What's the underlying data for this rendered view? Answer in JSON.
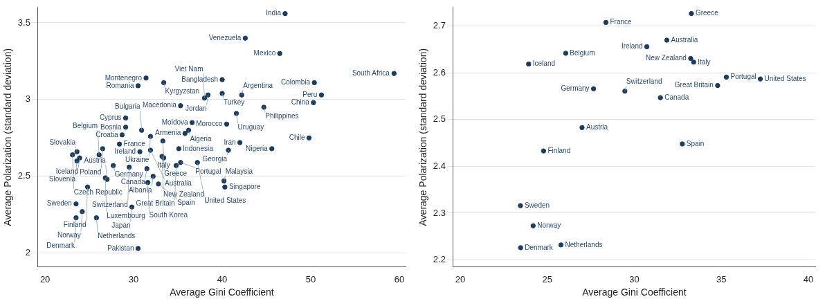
{
  "chart_data": [
    {
      "type": "scatter",
      "xlabel": "Average Gini Coefficient",
      "ylabel": "Average Polarization (standard deviation)",
      "color": "#1c3d5e",
      "marker": "circle",
      "grid": "y",
      "xlim": [
        19.2,
        60.7
      ],
      "ylim": [
        1.91,
        3.6
      ],
      "xticks": [
        20,
        30,
        40,
        50,
        60
      ],
      "yticks": [
        2,
        2.5,
        3,
        3.5
      ],
      "x": [
        47.1,
        42.6,
        46.5,
        59.4,
        40.0,
        50.4,
        31.4,
        33.4,
        30.5,
        40.0,
        42.2,
        38.4,
        38.0,
        51.2,
        50.3,
        35.3,
        44.7,
        41.6,
        29.1,
        36.6,
        40.5,
        29.1,
        30.9,
        36.2,
        35.8,
        28.7,
        31.9,
        49.8,
        33.3,
        42.0,
        28.4,
        26.5,
        35.1,
        45.6,
        40.7,
        31.9,
        23.6,
        30.7,
        26.1,
        23.1,
        33.2,
        33.4,
        23.9,
        23.6,
        35.3,
        37.2,
        34.8,
        27.7,
        29.5,
        31.5,
        32.2,
        26.8,
        27.0,
        40.2,
        31.6,
        32.8,
        24.8,
        40.3,
        23.5,
        29.8,
        24.2,
        23.5,
        25.8,
        30.5
      ],
      "values": [
        3.56,
        3.4,
        3.3,
        3.17,
        3.13,
        3.11,
        3.14,
        3.11,
        3.09,
        3.04,
        3.03,
        3.03,
        3.01,
        3.03,
        2.98,
        2.96,
        2.95,
        2.91,
        2.88,
        2.85,
        2.84,
        2.82,
        2.8,
        2.8,
        2.78,
        2.77,
        2.76,
        2.75,
        2.73,
        2.72,
        2.71,
        2.68,
        2.68,
        2.68,
        2.67,
        2.67,
        2.66,
        2.66,
        2.64,
        2.64,
        2.63,
        2.62,
        2.62,
        2.6,
        2.59,
        2.59,
        2.57,
        2.57,
        2.56,
        2.55,
        2.5,
        2.49,
        2.48,
        2.47,
        2.46,
        2.45,
        2.43,
        2.43,
        2.32,
        2.3,
        2.27,
        2.23,
        2.23,
        2.03
      ],
      "annotations": [
        {
          "text": "India",
          "x": 47.1,
          "y": 3.56
        },
        {
          "text": "Venezuela",
          "x": 42.6,
          "y": 3.4
        },
        {
          "text": "Mexico",
          "x": 46.5,
          "y": 3.3
        },
        {
          "text": "South Africa",
          "x": 59.4,
          "y": 3.17
        },
        {
          "text": "Bangladesh",
          "x": 40.0,
          "y": 3.13
        },
        {
          "text": "Colombia",
          "x": 50.4,
          "y": 3.11
        },
        {
          "text": "Montenegro",
          "x": 31.4,
          "y": 3.14
        },
        {
          "text": "Kyrgyzstan",
          "x": 33.4,
          "y": 3.11
        },
        {
          "text": "Romania",
          "x": 30.5,
          "y": 3.09
        },
        {
          "text": "Turkey",
          "x": 40.0,
          "y": 3.04
        },
        {
          "text": "Argentina",
          "x": 42.2,
          "y": 3.03
        },
        {
          "text": "Jordan",
          "x": 38.4,
          "y": 3.03
        },
        {
          "text": "Viet Nam",
          "x": 38.0,
          "y": 3.01
        },
        {
          "text": "Peru",
          "x": 51.2,
          "y": 3.03
        },
        {
          "text": "China",
          "x": 50.3,
          "y": 2.98
        },
        {
          "text": "Macedonia",
          "x": 35.3,
          "y": 2.96
        },
        {
          "text": "Philippines",
          "x": 44.7,
          "y": 2.95
        },
        {
          "text": "Uruguay",
          "x": 41.6,
          "y": 2.91
        },
        {
          "text": "Cyprus",
          "x": 29.1,
          "y": 2.88
        },
        {
          "text": "Moldova",
          "x": 36.6,
          "y": 2.85
        },
        {
          "text": "Morocco",
          "x": 40.5,
          "y": 2.84
        },
        {
          "text": "Bosnia",
          "x": 29.1,
          "y": 2.82
        },
        {
          "text": "Bulgaria",
          "x": 30.9,
          "y": 2.8
        },
        {
          "text": "Algeria",
          "x": 36.2,
          "y": 2.8
        },
        {
          "text": "Armenia",
          "x": 35.8,
          "y": 2.78
        },
        {
          "text": "Croatia",
          "x": 28.7,
          "y": 2.77
        },
        {
          "text": "Ukraine",
          "x": 31.9,
          "y": 2.76
        },
        {
          "text": "Chile",
          "x": 49.8,
          "y": 2.75
        },
        {
          "text": "Greece",
          "x": 33.3,
          "y": 2.73
        },
        {
          "text": "Iran",
          "x": 42.0,
          "y": 2.72
        },
        {
          "text": "France",
          "x": 28.4,
          "y": 2.71
        },
        {
          "text": "Poland",
          "x": 26.5,
          "y": 2.68
        },
        {
          "text": "Indonesia",
          "x": 35.1,
          "y": 2.68
        },
        {
          "text": "Nigeria",
          "x": 45.6,
          "y": 2.68
        },
        {
          "text": "Georgia",
          "x": 40.7,
          "y": 2.67
        },
        {
          "text": "Australia",
          "x": 31.9,
          "y": 2.67
        },
        {
          "text": "Slovakia",
          "x": 23.6,
          "y": 2.66
        },
        {
          "text": "Ireland",
          "x": 30.7,
          "y": 2.66
        },
        {
          "text": "Belgium",
          "x": 26.1,
          "y": 2.64
        },
        {
          "text": "Czech Republic",
          "x": 23.1,
          "y": 2.64
        },
        {
          "text": "New Zealand",
          "x": 33.2,
          "y": 2.63
        },
        {
          "text": "Italy",
          "x": 33.4,
          "y": 2.62
        },
        {
          "text": "Iceland",
          "x": 23.9,
          "y": 2.62
        },
        {
          "text": "Slovenia",
          "x": 23.6,
          "y": 2.6
        },
        {
          "text": "Portugal",
          "x": 35.3,
          "y": 2.59
        },
        {
          "text": "United States",
          "x": 37.2,
          "y": 2.59
        },
        {
          "text": "Great Britain",
          "x": 34.8,
          "y": 2.57
        },
        {
          "text": "Germany",
          "x": 27.7,
          "y": 2.57
        },
        {
          "text": "Switzerland",
          "x": 29.5,
          "y": 2.56
        },
        {
          "text": "Canada",
          "x": 31.5,
          "y": 2.55
        },
        {
          "text": "Albania",
          "x": 32.2,
          "y": 2.5
        },
        {
          "text": "Luxembourg",
          "x": 26.8,
          "y": 2.49
        },
        {
          "text": "Austria",
          "x": 27.0,
          "y": 2.48
        },
        {
          "text": "Malaysia",
          "x": 40.2,
          "y": 2.47
        },
        {
          "text": "South Korea",
          "x": 31.6,
          "y": 2.46
        },
        {
          "text": "Spain",
          "x": 32.8,
          "y": 2.45
        },
        {
          "text": "Finland",
          "x": 24.8,
          "y": 2.43
        },
        {
          "text": "Singapore",
          "x": 40.3,
          "y": 2.43
        },
        {
          "text": "Sweden",
          "x": 23.5,
          "y": 2.32
        },
        {
          "text": "Japan",
          "x": 29.8,
          "y": 2.3
        },
        {
          "text": "Norway",
          "x": 24.2,
          "y": 2.27
        },
        {
          "text": "Denmark",
          "x": 23.5,
          "y": 2.23
        },
        {
          "text": "Netherlands",
          "x": 25.8,
          "y": 2.23
        },
        {
          "text": "Pakistan",
          "x": 30.5,
          "y": 2.03
        }
      ]
    },
    {
      "type": "scatter",
      "xlabel": "Average Gini Coefficient",
      "ylabel": "Average Polarization (standard deviation)",
      "color": "#1c3d5e",
      "marker": "circle",
      "grid": "y",
      "xlim": [
        19.6,
        40.4
      ],
      "ylim": [
        2.185,
        2.74
      ],
      "xticks": [
        20,
        25,
        30,
        35,
        40
      ],
      "yticks": [
        2.2,
        2.3,
        2.4,
        2.5,
        2.6,
        2.7
      ],
      "x": [
        33.28,
        28.37,
        31.87,
        30.72,
        26.06,
        23.93,
        33.24,
        33.41,
        35.29,
        37.24,
        34.79,
        27.66,
        29.46,
        31.5,
        27.0,
        32.76,
        24.79,
        23.46,
        24.19,
        23.47,
        25.79
      ],
      "values": [
        2.727,
        2.708,
        2.67,
        2.656,
        2.642,
        2.619,
        2.631,
        2.623,
        2.591,
        2.587,
        2.573,
        2.566,
        2.561,
        2.547,
        2.483,
        2.448,
        2.433,
        2.316,
        2.273,
        2.226,
        2.232
      ],
      "annotations": [
        {
          "text": "Greece",
          "x": 33.28,
          "y": 2.727
        },
        {
          "text": "France",
          "x": 28.37,
          "y": 2.708
        },
        {
          "text": "Australia",
          "x": 31.87,
          "y": 2.67
        },
        {
          "text": "Ireland",
          "x": 30.72,
          "y": 2.656
        },
        {
          "text": "Belgium",
          "x": 26.06,
          "y": 2.642
        },
        {
          "text": "Iceland",
          "x": 23.93,
          "y": 2.619
        },
        {
          "text": "New Zealand",
          "x": 33.24,
          "y": 2.631
        },
        {
          "text": "Italy",
          "x": 33.41,
          "y": 2.623
        },
        {
          "text": "Portugal",
          "x": 35.29,
          "y": 2.591
        },
        {
          "text": "United States",
          "x": 37.24,
          "y": 2.587
        },
        {
          "text": "Great Britain",
          "x": 34.79,
          "y": 2.573
        },
        {
          "text": "Germany",
          "x": 27.66,
          "y": 2.566
        },
        {
          "text": "Switzerland",
          "x": 29.46,
          "y": 2.561
        },
        {
          "text": "Canada",
          "x": 31.5,
          "y": 2.547
        },
        {
          "text": "Austria",
          "x": 27.0,
          "y": 2.483
        },
        {
          "text": "Spain",
          "x": 32.76,
          "y": 2.448
        },
        {
          "text": "Finland",
          "x": 24.79,
          "y": 2.433
        },
        {
          "text": "Sweden",
          "x": 23.46,
          "y": 2.316
        },
        {
          "text": "Norway",
          "x": 24.19,
          "y": 2.273
        },
        {
          "text": "Denmark",
          "x": 23.47,
          "y": 2.226
        },
        {
          "text": "Netherlands",
          "x": 25.79,
          "y": 2.232
        }
      ]
    }
  ]
}
